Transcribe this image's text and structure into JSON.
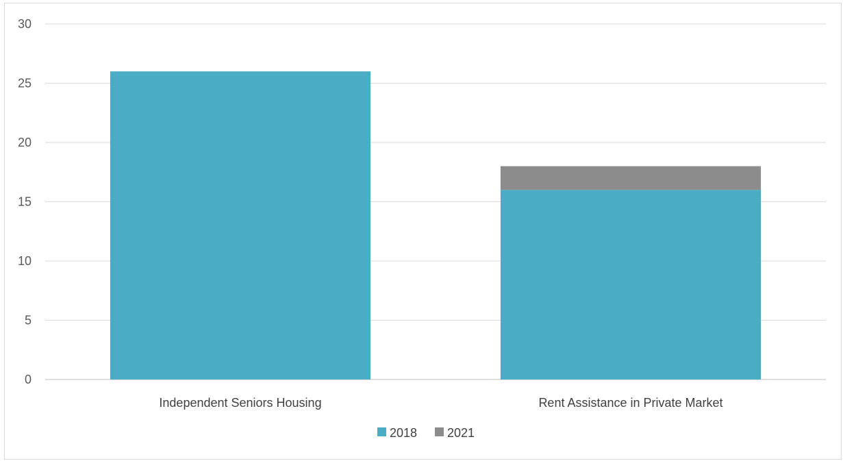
{
  "chart_data": {
    "type": "bar",
    "stacked": true,
    "categories": [
      "Independent Seniors Housing",
      "Rent Assistance in Private Market"
    ],
    "series": [
      {
        "name": "2018",
        "values": [
          26,
          16
        ],
        "color": "#4bacc6"
      },
      {
        "name": "2021",
        "values": [
          0,
          2
        ],
        "color": "#8c8c8c"
      }
    ],
    "title": "",
    "xlabel": "",
    "ylabel": "",
    "ylim": [
      0,
      30
    ],
    "yticks": [
      0,
      5,
      10,
      15,
      20,
      25,
      30
    ],
    "grid": true,
    "legend_position": "bottom",
    "gridline_color": "#d9d9d9",
    "axis_color": "#bfbfbf"
  }
}
